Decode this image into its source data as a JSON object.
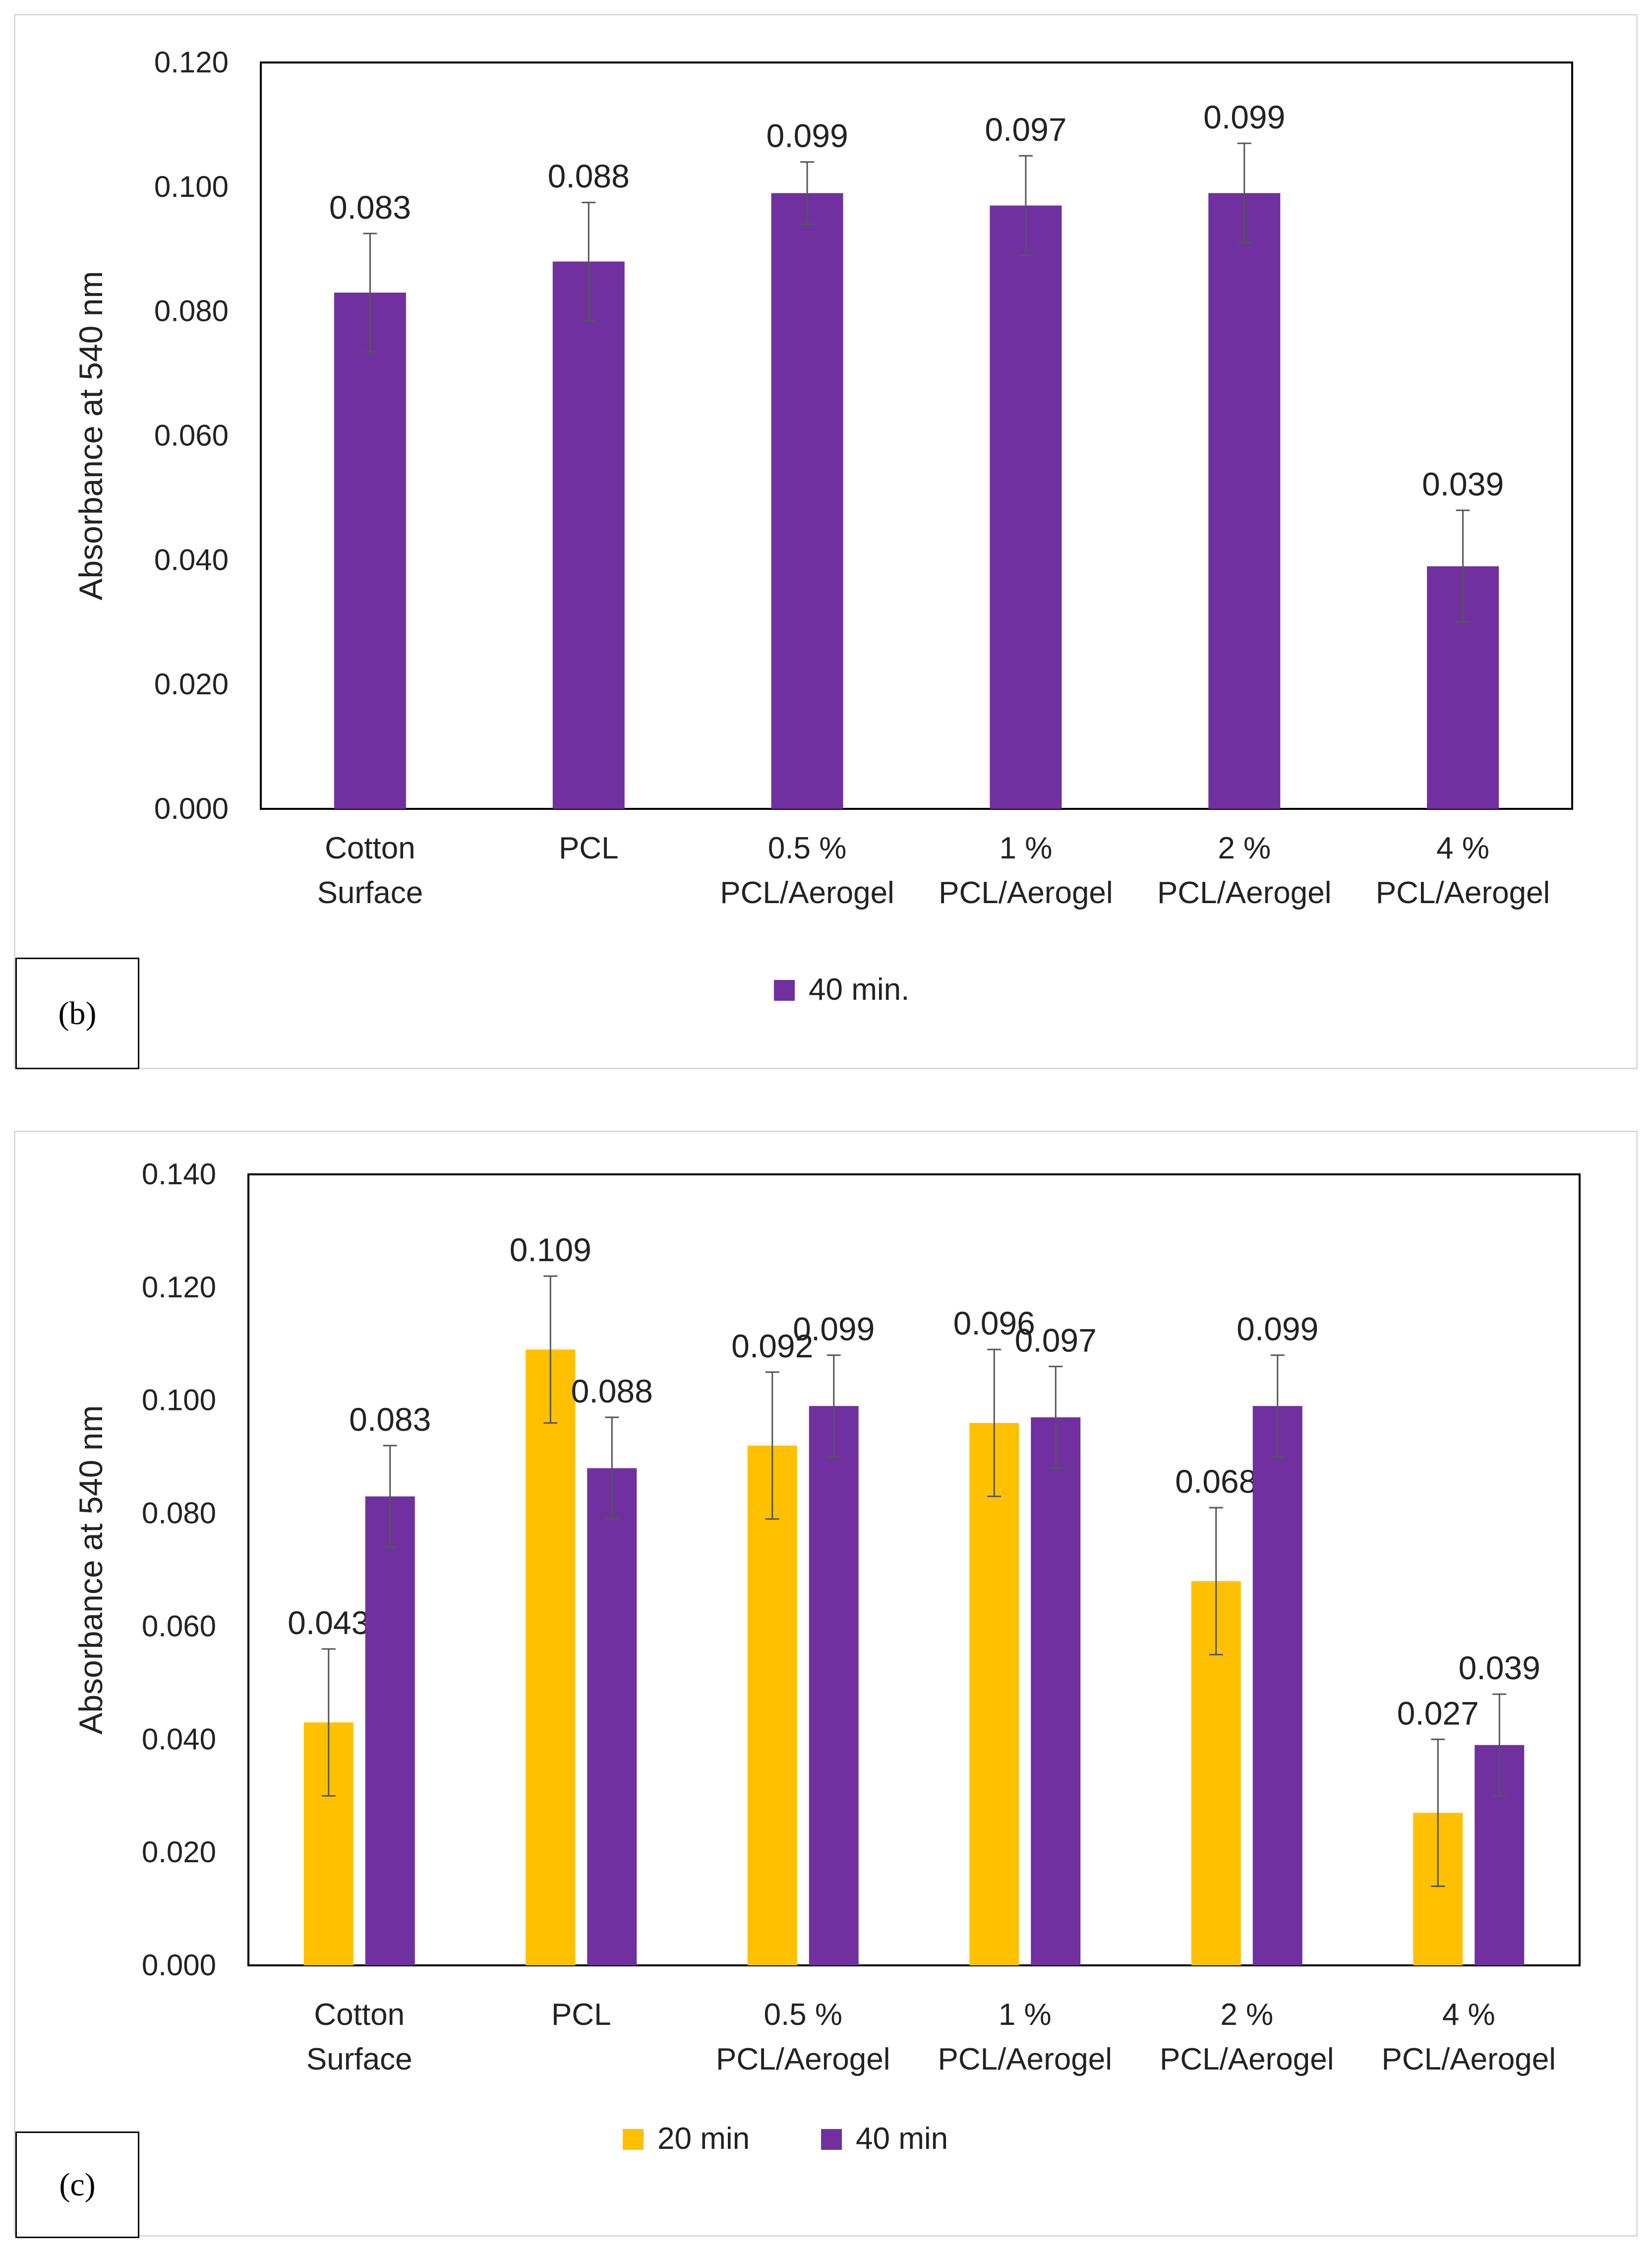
{
  "chart_data": [
    {
      "type": "bar",
      "panel_label": "(b)",
      "ylabel": "Absorbance at 540 nm",
      "ylim": [
        0,
        0.12
      ],
      "yticks": [
        "0.000",
        "0.020",
        "0.040",
        "0.060",
        "0.080",
        "0.100",
        "0.120"
      ],
      "categories": [
        [
          "Cotton",
          "Surface"
        ],
        [
          "PCL"
        ],
        [
          "0.5 %",
          "PCL/Aerogel"
        ],
        [
          "1 %",
          "PCL/Aerogel"
        ],
        [
          "2 %",
          "PCL/Aerogel"
        ],
        [
          "4 %",
          "PCL/Aerogel"
        ]
      ],
      "series": [
        {
          "name": "40 min.",
          "color": "#7030a0",
          "values": [
            0.083,
            0.088,
            0.099,
            0.097,
            0.099,
            0.039
          ],
          "labels": [
            "0.083",
            "0.088",
            "0.099",
            "0.097",
            "0.099",
            "0.039"
          ],
          "errors": [
            0.0095,
            0.0095,
            0.005,
            0.008,
            0.008,
            0.009
          ]
        }
      ]
    },
    {
      "type": "bar",
      "panel_label": "(c)",
      "ylabel": "Absorbance at 540 nm",
      "ylim": [
        0,
        0.14
      ],
      "yticks": [
        "0.000",
        "0.020",
        "0.040",
        "0.060",
        "0.080",
        "0.100",
        "0.120",
        "0.140"
      ],
      "categories": [
        [
          "Cotton",
          "Surface"
        ],
        [
          "PCL"
        ],
        [
          "0.5 %",
          "PCL/Aerogel"
        ],
        [
          "1 %",
          "PCL/Aerogel"
        ],
        [
          "2 %",
          "PCL/Aerogel"
        ],
        [
          "4 %",
          "PCL/Aerogel"
        ]
      ],
      "series": [
        {
          "name": "20 min",
          "color": "#ffc000",
          "values": [
            0.043,
            0.109,
            0.092,
            0.096,
            0.068,
            0.027
          ],
          "labels": [
            "0.043",
            "0.109",
            "0.092",
            "0.096",
            "0.068",
            "0.027"
          ],
          "errors": [
            0.013,
            0.013,
            0.013,
            0.013,
            0.013,
            0.013
          ]
        },
        {
          "name": "40 min",
          "color": "#7030a0",
          "values": [
            0.083,
            0.088,
            0.099,
            0.097,
            0.099,
            0.039
          ],
          "labels": [
            "0.083",
            "0.088",
            "0.099",
            "0.097",
            "0.099",
            "0.039"
          ],
          "errors": [
            0.009,
            0.009,
            0.009,
            0.009,
            0.009,
            0.009
          ]
        }
      ]
    }
  ]
}
